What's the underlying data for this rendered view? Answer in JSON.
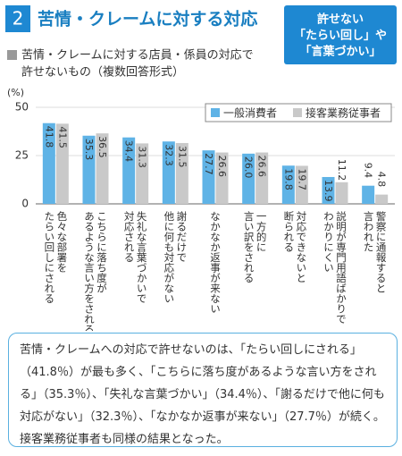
{
  "header": {
    "number": "2",
    "title": "苦情・クレームに対する対応",
    "badge": [
      "許せない",
      "「たらい回し」や",
      "「言葉づかい」"
    ]
  },
  "chart_data": {
    "type": "bar",
    "subtitle": [
      "苦情・クレームに対する店員・係員の対応で",
      "許せないもの（複数回答形式）"
    ],
    "y_label": "(%)",
    "categories": [
      [
        "色々な部署を",
        "たらい回しにされる"
      ],
      [
        "こちらに落ち度が",
        "あるような言い方をされる"
      ],
      [
        "失礼な言葉づかいで",
        "対応される"
      ],
      [
        "謝るだけで",
        "他に何も対応がない"
      ],
      [
        "なかなか返事が来ない"
      ],
      [
        "一方的に",
        "言い訳をされる"
      ],
      [
        "対応できないと",
        "断られる"
      ],
      [
        "説明が専門用語ばかりで",
        "わかりにくい"
      ],
      [
        "警察に通報すると",
        "言われた"
      ]
    ],
    "series": [
      {
        "name": "一般消費者",
        "color": "#5fb3e6",
        "values": [
          41.8,
          35.3,
          34.4,
          32.3,
          27.7,
          26.0,
          19.8,
          13.9,
          9.4
        ],
        "value_labels": [
          "41.8",
          "35.3",
          "34.4",
          "32.3",
          "27.7",
          "26.0",
          "19.8",
          "13.9",
          "9.4"
        ]
      },
      {
        "name": "接客業務従事者",
        "color": "#c9c9c9",
        "values": [
          41.5,
          36.5,
          31.3,
          31.5,
          26.6,
          26.6,
          19.7,
          11.2,
          4.8
        ],
        "value_labels": [
          "41.5",
          "36.5",
          "31.3",
          "31.5",
          "26.6",
          "26.6",
          "19.7",
          "11.2",
          "4.8"
        ]
      }
    ],
    "ylim": [
      0,
      50
    ],
    "yticks": [
      0,
      25,
      50
    ],
    "grid": true,
    "legend": "top-right"
  },
  "note": "苦情・クレームへの対応で許せないのは、「たらい回しにされる」（41.8％）が最も多く、「こちらに落ち度があるような言い方をされる」（35.3％）、「失礼な言葉づかい」（34.4％）、「謝るだけで他に何も対応がない」（32.3％）、「なかなか返事が来ない」（27.7％）が続く。接客業務従事者も同様の結果となった。"
}
